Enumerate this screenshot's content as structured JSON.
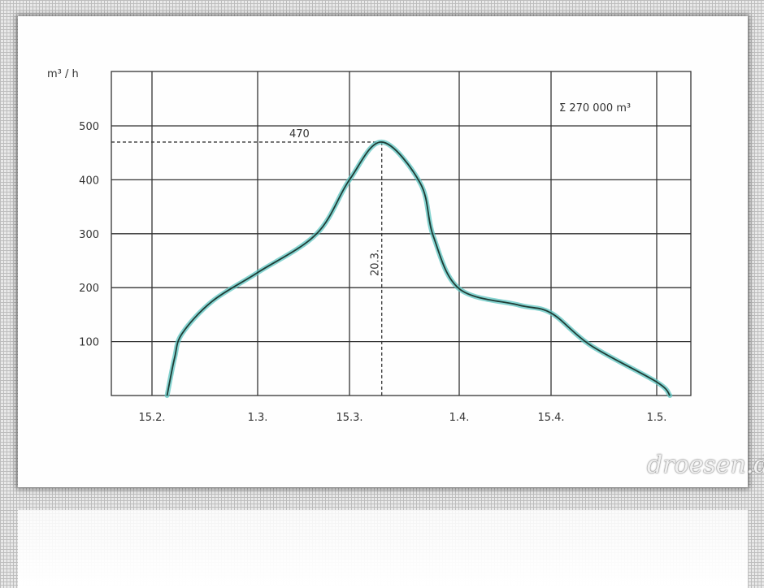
{
  "chart_data": {
    "type": "line",
    "title": "",
    "ylabel": "m³ / h",
    "xlabel": "",
    "ylim": [
      0,
      600
    ],
    "yticks": [
      100,
      200,
      300,
      400,
      500
    ],
    "xticks": [
      "15.2.",
      "1.3.",
      "15.3.",
      "1.4.",
      "15.4.",
      "1.5."
    ],
    "grid": true,
    "line_color": "#1f3d36",
    "highlight_color": "#5cc4c0",
    "series": [
      {
        "x": [
          "17.2.",
          "18.2.",
          "19.2.",
          "23.2.",
          "1.3.",
          "10.3.",
          "15.3.",
          "20.3.",
          "26.3.",
          "28.3.",
          "1.4.",
          "10.4.",
          "15.4.",
          "21.4.",
          "1.5.",
          "3.5."
        ],
        "y": [
          0,
          70,
          115,
          175,
          228,
          300,
          400,
          470,
          393,
          295,
          198,
          168,
          153,
          93,
          25,
          0
        ]
      }
    ],
    "annotations": {
      "peak_value": "470",
      "peak_date": "20.3.",
      "total": "Σ 270 000 m³"
    }
  },
  "watermark": "droesen.de"
}
